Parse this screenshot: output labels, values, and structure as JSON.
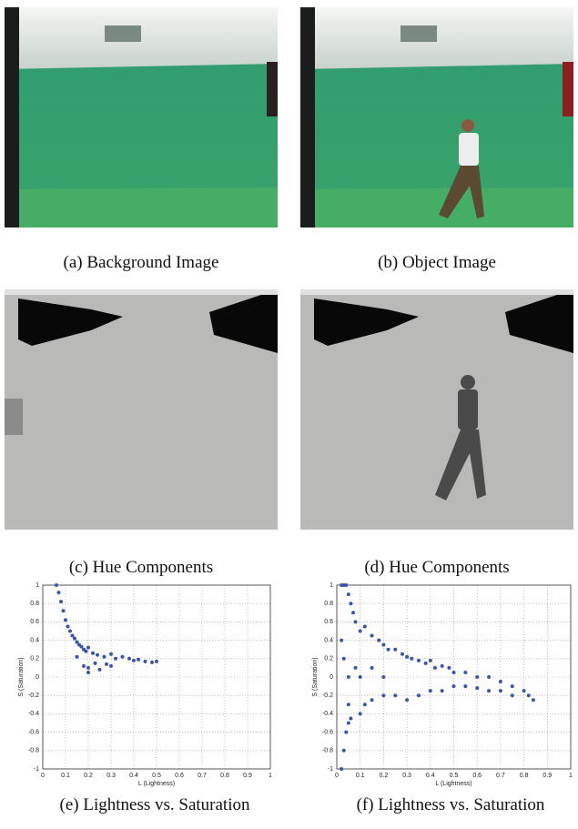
{
  "panels": [
    {
      "caption": "(a) Background Image"
    },
    {
      "caption": "(b) Object Image"
    },
    {
      "caption": "(c) Hue Components"
    },
    {
      "caption": "(d) Hue Components"
    },
    {
      "caption": "(e) Lightness vs. Saturation"
    },
    {
      "caption": "(f) Lightness vs. Saturation"
    }
  ],
  "chart_data": [
    {
      "type": "scatter",
      "xlabel": "L (Lightness)",
      "ylabel": "S (Saturation)",
      "xlim": [
        0,
        1
      ],
      "ylim": [
        -1,
        1
      ],
      "xticks": [
        0,
        0.1,
        0.2,
        0.3,
        0.4,
        0.5,
        0.6,
        0.7,
        0.8,
        0.9,
        1
      ],
      "yticks": [
        -1,
        -0.8,
        -0.6,
        -0.4,
        -0.2,
        0,
        0.2,
        0.4,
        0.6,
        0.8,
        1
      ],
      "grid": true,
      "series": [
        {
          "color": "#3b55a8",
          "x": [
            0.06,
            0.07,
            0.08,
            0.09,
            0.1,
            0.11,
            0.12,
            0.13,
            0.14,
            0.15,
            0.16,
            0.17,
            0.18,
            0.19,
            0.2,
            0.2,
            0.22,
            0.24,
            0.25,
            0.27,
            0.3,
            0.3,
            0.32,
            0.35,
            0.38,
            0.4,
            0.42,
            0.45,
            0.48,
            0.5,
            0.15,
            0.18,
            0.2,
            0.23,
            0.28
          ],
          "y": [
            1,
            0.92,
            0.82,
            0.72,
            0.62,
            0.55,
            0.5,
            0.45,
            0.42,
            0.38,
            0.35,
            0.33,
            0.3,
            0.28,
            0.32,
            0.1,
            0.26,
            0.24,
            0.08,
            0.22,
            0.25,
            0.12,
            0.2,
            0.22,
            0.2,
            0.18,
            0.19,
            0.17,
            0.16,
            0.17,
            0.22,
            0.12,
            0.05,
            0.15,
            0.14
          ]
        }
      ]
    },
    {
      "type": "scatter",
      "xlabel": "L (Lightness)",
      "ylabel": "S (Saturation)",
      "xlim": [
        0,
        1
      ],
      "ylim": [
        -1,
        1
      ],
      "xticks": [
        0,
        0.1,
        0.2,
        0.3,
        0.4,
        0.5,
        0.6,
        0.7,
        0.8,
        0.9,
        1
      ],
      "yticks": [
        -1,
        -0.8,
        -0.6,
        -0.4,
        -0.2,
        0,
        0.2,
        0.4,
        0.6,
        0.8,
        1
      ],
      "grid": true,
      "series": [
        {
          "color": "#3b55a8",
          "x": [
            0.02,
            0.03,
            0.04,
            0.05,
            0.06,
            0.02,
            0.03,
            0.04,
            0.05,
            0.06,
            0.07,
            0.08,
            0.1,
            0.1,
            0.12,
            0.12,
            0.15,
            0.15,
            0.18,
            0.2,
            0.2,
            0.22,
            0.25,
            0.25,
            0.28,
            0.3,
            0.3,
            0.32,
            0.35,
            0.35,
            0.38,
            0.4,
            0.4,
            0.42,
            0.45,
            0.45,
            0.48,
            0.5,
            0.5,
            0.55,
            0.55,
            0.6,
            0.6,
            0.65,
            0.65,
            0.7,
            0.7,
            0.75,
            0.75,
            0.8,
            0.82,
            0.84,
            0.03,
            0.05,
            0.08,
            0.1,
            0.15,
            0.2,
            0.02,
            0.05
          ],
          "y": [
            1,
            1,
            1,
            0.9,
            0.8,
            -1,
            -0.8,
            -0.6,
            -0.5,
            -0.45,
            0.7,
            0.6,
            0.5,
            -0.4,
            0.55,
            -0.3,
            0.45,
            -0.25,
            0.4,
            0.35,
            -0.2,
            0.3,
            0.3,
            -0.2,
            0.25,
            0.22,
            -0.25,
            0.2,
            0.18,
            -0.2,
            0.15,
            0.18,
            -0.15,
            0.1,
            0.12,
            -0.15,
            0.1,
            0.05,
            -0.1,
            0.05,
            -0.1,
            0,
            -0.12,
            0,
            -0.15,
            -0.05,
            -0.15,
            -0.1,
            -0.2,
            -0.15,
            -0.2,
            -0.25,
            0.2,
            0,
            0.1,
            0,
            0.1,
            0,
            0.4,
            -0.3
          ]
        }
      ]
    }
  ]
}
